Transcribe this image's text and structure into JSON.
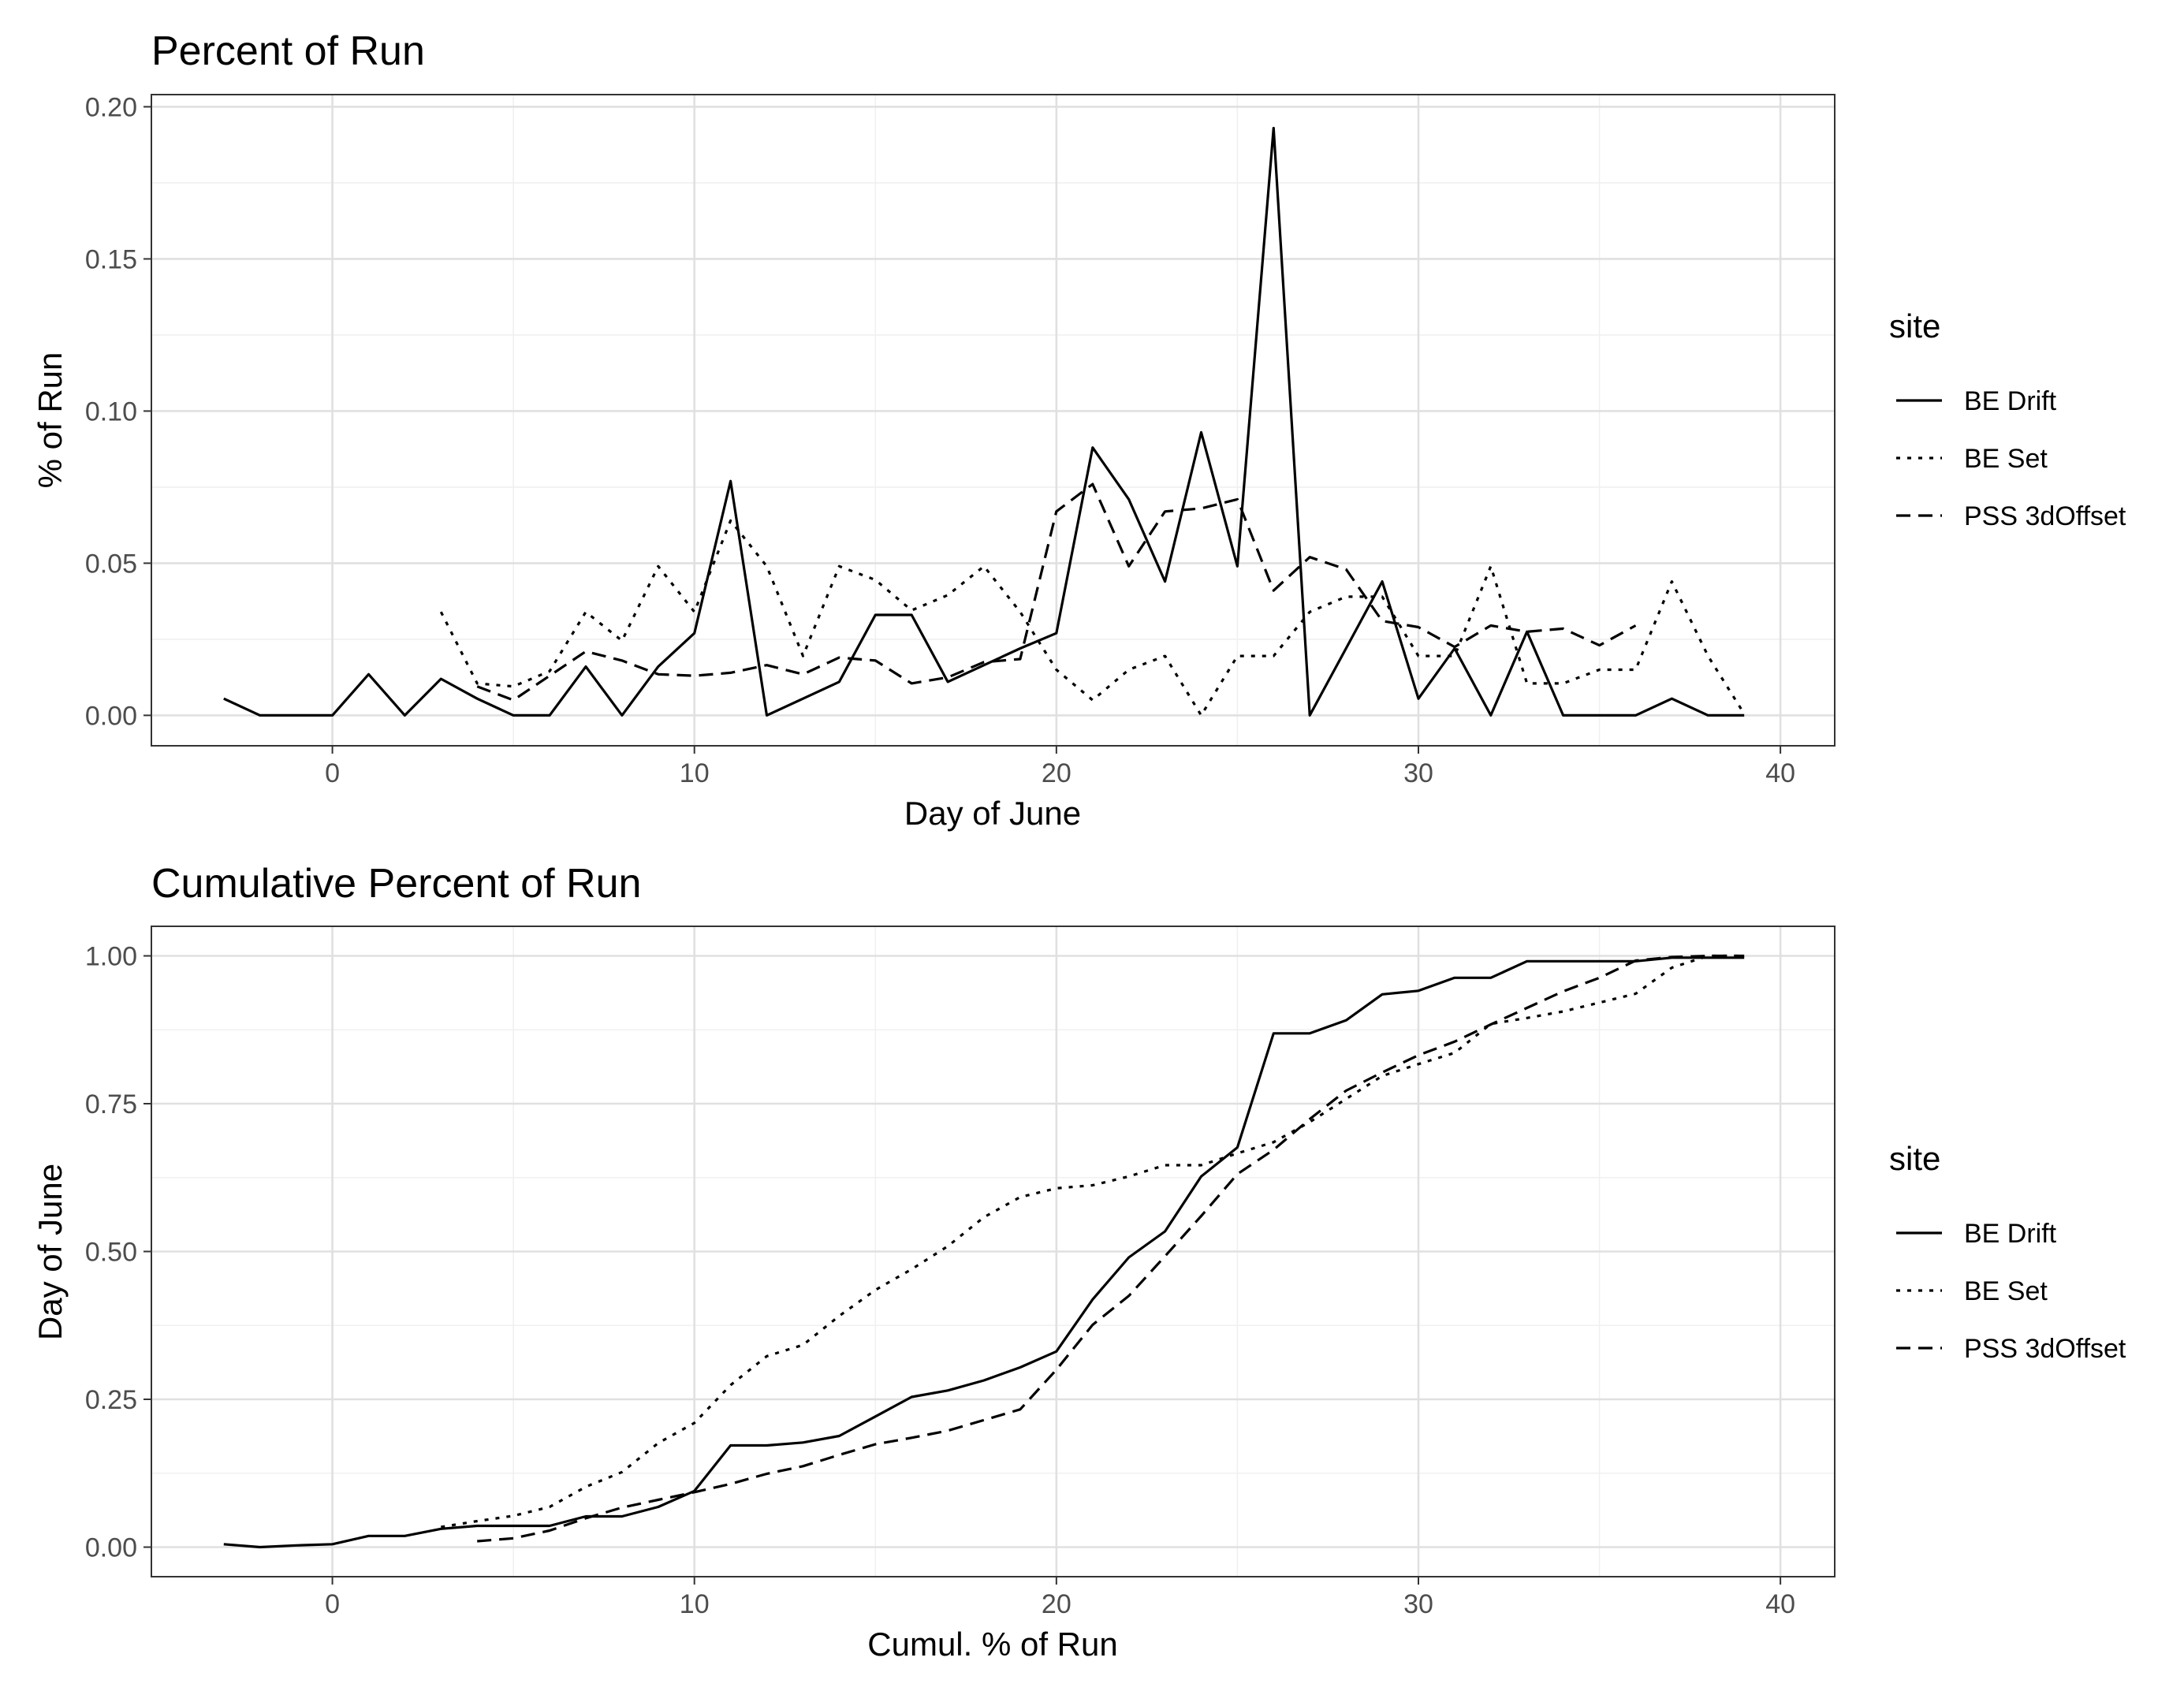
{
  "legend_title": "site",
  "legend_entries": [
    {
      "name": "BE Drift",
      "dash": "solid"
    },
    {
      "name": "BE Set",
      "dash": "dotted"
    },
    {
      "name": "PSS 3dOffset",
      "dash": "dashed"
    }
  ],
  "colors": {
    "line": "#000000",
    "grid_major": "#e0e0e0",
    "grid_minor": "#f0f0f0",
    "panel_border": "#333333",
    "text": "#000000",
    "tick_text": "#4d4d4d"
  },
  "chart_data": [
    {
      "type": "line",
      "title": "Percent of Run",
      "xlabel": "Day of June",
      "ylabel": "% of Run",
      "xlim": [
        -5,
        41.5
      ],
      "ylim": [
        -0.01,
        0.204
      ],
      "xticks": [
        0,
        10,
        20,
        30,
        40
      ],
      "xtick_labels": [
        "0",
        "10",
        "20",
        "30",
        "40"
      ],
      "yticks": [
        0.0,
        0.05,
        0.1,
        0.15,
        0.2
      ],
      "ytick_labels": [
        "0.00",
        "0.05",
        "0.10",
        "0.15",
        "0.20"
      ],
      "grid": true,
      "legend_position": "right",
      "series": [
        {
          "name": "BE Drift",
          "dash": "solid",
          "x": [
            -3,
            -2,
            -1,
            0,
            1,
            2,
            3,
            4,
            5,
            6,
            7,
            8,
            9,
            10,
            11,
            12,
            13,
            14,
            15,
            16,
            17,
            18,
            19,
            20,
            21,
            22,
            23,
            24,
            25,
            26,
            27,
            28,
            29,
            30,
            31,
            32,
            33,
            34,
            35,
            36,
            37,
            38,
            39
          ],
          "y": [
            0.0055,
            0,
            0,
            0,
            0.0135,
            0,
            0.012,
            0.0055,
            0,
            0,
            0.016,
            0,
            0.016,
            0.027,
            0.077,
            0,
            0.0055,
            0.011,
            0.033,
            0.033,
            0.011,
            0.0165,
            0.022,
            0.027,
            0.088,
            0.071,
            0.044,
            0.093,
            0.049,
            0.193,
            0,
            0.022,
            0.044,
            0.0055,
            0.022,
            0,
            0.0275,
            0,
            0,
            0,
            0.0055,
            0,
            0
          ]
        },
        {
          "name": "BE Set",
          "dash": "dotted",
          "x": [
            3,
            4,
            5,
            6,
            7,
            8,
            9,
            10,
            11,
            12,
            13,
            14,
            15,
            16,
            17,
            18,
            19,
            20,
            21,
            22,
            23,
            24,
            25,
            26,
            27,
            28,
            29,
            30,
            31,
            32,
            33,
            34,
            35,
            36,
            37,
            38,
            39
          ],
          "y": [
            0.034,
            0.0105,
            0.0095,
            0.0145,
            0.034,
            0.0245,
            0.049,
            0.034,
            0.064,
            0.049,
            0.0195,
            0.049,
            0.0445,
            0.0345,
            0.0395,
            0.049,
            0.034,
            0.015,
            0.005,
            0.015,
            0.0195,
            0,
            0.0195,
            0.0195,
            0.034,
            0.039,
            0.039,
            0.0195,
            0.0195,
            0.049,
            0.0105,
            0.0105,
            0.015,
            0.015,
            0.044,
            0.0195,
            0.0005
          ]
        },
        {
          "name": "PSS 3dOffset",
          "dash": "dashed",
          "x": [
            4,
            5,
            6,
            7,
            8,
            9,
            10,
            11,
            12,
            13,
            14,
            15,
            16,
            17,
            18,
            19,
            20,
            21,
            22,
            23,
            24,
            25,
            26,
            27,
            28,
            29,
            30,
            31,
            32,
            33,
            34,
            35,
            36
          ],
          "y": [
            0.0095,
            0.005,
            0.013,
            0.021,
            0.018,
            0.0135,
            0.013,
            0.014,
            0.0165,
            0.0135,
            0.019,
            0.018,
            0.0105,
            0.0125,
            0.0175,
            0.0185,
            0.067,
            0.076,
            0.049,
            0.067,
            0.068,
            0.071,
            0.041,
            0.052,
            0.048,
            0.031,
            0.029,
            0.0225,
            0.0295,
            0.0275,
            0.0285,
            0.023,
            0.0295
          ]
        }
      ]
    },
    {
      "type": "line",
      "title": "Cumulative Percent of Run",
      "xlabel": "Cumul. % of Run",
      "ylabel": "Day of June",
      "xlim": [
        -5,
        41.5
      ],
      "ylim": [
        -0.05,
        1.05
      ],
      "xticks": [
        0,
        10,
        20,
        30,
        40
      ],
      "xtick_labels": [
        "0",
        "10",
        "20",
        "30",
        "40"
      ],
      "yticks": [
        0.0,
        0.25,
        0.5,
        0.75,
        1.0
      ],
      "ytick_labels": [
        "0.00",
        "0.25",
        "0.50",
        "0.75",
        "1.00"
      ],
      "grid": true,
      "legend_position": "right",
      "series": [
        {
          "name": "BE Drift",
          "dash": "solid",
          "x": [
            -3,
            -2,
            -1,
            0,
            1,
            2,
            3,
            4,
            5,
            6,
            7,
            8,
            9,
            10,
            11,
            12,
            13,
            14,
            15,
            16,
            17,
            18,
            19,
            20,
            21,
            22,
            23,
            24,
            25,
            26,
            27,
            28,
            29,
            30,
            31,
            32,
            33,
            34,
            35,
            36,
            37,
            38,
            39
          ],
          "y": [
            0.005,
            0,
            0.003,
            0.005,
            0.019,
            0.019,
            0.031,
            0.036,
            0.036,
            0.036,
            0.052,
            0.052,
            0.068,
            0.095,
            0.172,
            0.172,
            0.177,
            0.188,
            0.221,
            0.254,
            0.265,
            0.282,
            0.304,
            0.331,
            0.419,
            0.49,
            0.534,
            0.627,
            0.676,
            0.869,
            0.869,
            0.891,
            0.935,
            0.941,
            0.963,
            0.963,
            0.991,
            0.991,
            0.991,
            0.991,
            0.997,
            0.997,
            0.997
          ]
        },
        {
          "name": "BE Set",
          "dash": "dotted",
          "x": [
            3,
            4,
            5,
            6,
            7,
            8,
            9,
            10,
            11,
            12,
            13,
            14,
            15,
            16,
            17,
            18,
            19,
            20,
            21,
            22,
            23,
            24,
            25,
            26,
            27,
            28,
            29,
            30,
            31,
            32,
            33,
            34,
            35,
            36,
            37,
            38,
            39
          ],
          "y": [
            0.034,
            0.044,
            0.053,
            0.068,
            0.102,
            0.127,
            0.176,
            0.21,
            0.274,
            0.323,
            0.342,
            0.391,
            0.435,
            0.47,
            0.509,
            0.558,
            0.592,
            0.607,
            0.612,
            0.627,
            0.646,
            0.646,
            0.666,
            0.685,
            0.719,
            0.758,
            0.797,
            0.817,
            0.836,
            0.885,
            0.895,
            0.906,
            0.921,
            0.936,
            0.98,
            1.0,
            1.0
          ]
        },
        {
          "name": "PSS 3dOffset",
          "dash": "dashed",
          "x": [
            4,
            5,
            6,
            7,
            8,
            9,
            10,
            11,
            12,
            13,
            14,
            15,
            16,
            17,
            18,
            19,
            20,
            21,
            22,
            23,
            24,
            25,
            26,
            27,
            28,
            29,
            30,
            31,
            32,
            33,
            34,
            35,
            36,
            37,
            38,
            39
          ],
          "y": [
            0.01,
            0.015,
            0.028,
            0.049,
            0.067,
            0.08,
            0.093,
            0.107,
            0.124,
            0.137,
            0.156,
            0.174,
            0.185,
            0.197,
            0.215,
            0.233,
            0.3,
            0.376,
            0.425,
            0.492,
            0.56,
            0.631,
            0.672,
            0.724,
            0.772,
            0.803,
            0.832,
            0.855,
            0.884,
            0.912,
            0.94,
            0.963,
            0.992,
            0.998,
            1.0,
            1.0
          ]
        }
      ]
    }
  ]
}
